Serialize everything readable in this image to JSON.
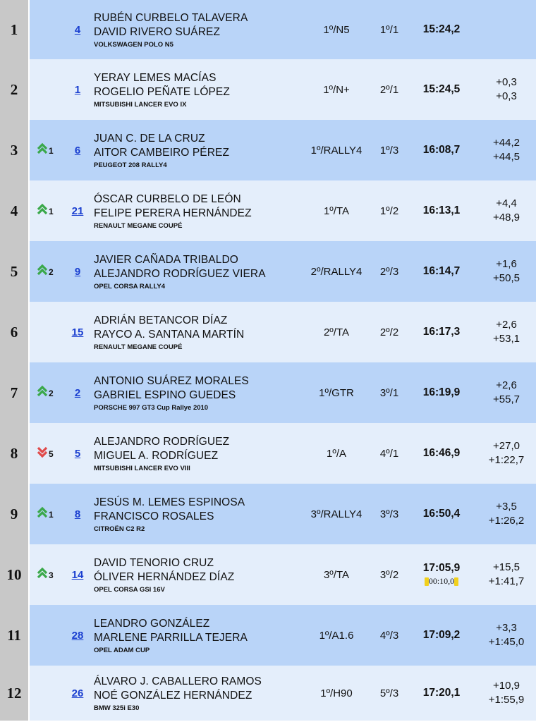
{
  "rows": [
    {
      "pos": "1",
      "change": null,
      "change_n": "",
      "num": "4",
      "d1": "RUBÉN CURBELO TALAVERA",
      "d2": "DAVID RIVERO SUÁREZ",
      "car": "VOLKSWAGEN POLO N5",
      "cls": "1º/N5",
      "ovr": "1º/1",
      "time": "15:24,2",
      "gap1": "",
      "gap2": "",
      "penalty": ""
    },
    {
      "pos": "2",
      "change": null,
      "change_n": "",
      "num": "1",
      "d1": "YERAY LEMES MACÍAS",
      "d2": "ROGELIO PEÑATE LÓPEZ",
      "car": "MITSUBISHI LANCER EVO IX",
      "cls": "1º/N+",
      "ovr": "2º/1",
      "time": "15:24,5",
      "gap1": "+0,3",
      "gap2": "+0,3",
      "penalty": ""
    },
    {
      "pos": "3",
      "change": "up",
      "change_n": "1",
      "num": "6",
      "d1": "JUAN C. DE LA CRUZ",
      "d2": "AITOR CAMBEIRO PÉREZ",
      "car": "PEUGEOT 208 RALLY4",
      "cls": "1º/RALLY4",
      "ovr": "1º/3",
      "time": "16:08,7",
      "gap1": "+44,2",
      "gap2": "+44,5",
      "penalty": ""
    },
    {
      "pos": "4",
      "change": "up",
      "change_n": "1",
      "num": "21",
      "d1": "ÓSCAR CURBELO DE LEÓN",
      "d2": "FELIPE PERERA HERNÁNDEZ",
      "car": "RENAULT MEGANE COUPÉ",
      "cls": "1º/TA",
      "ovr": "1º/2",
      "time": "16:13,1",
      "gap1": "+4,4",
      "gap2": "+48,9",
      "penalty": ""
    },
    {
      "pos": "5",
      "change": "up",
      "change_n": "2",
      "num": "9",
      "d1": "JAVIER CAÑADA TRIBALDO",
      "d2": "ALEJANDRO RODRÍGUEZ VIERA",
      "car": "OPEL CORSA RALLY4",
      "cls": "2º/RALLY4",
      "ovr": "2º/3",
      "time": "16:14,7",
      "gap1": "+1,6",
      "gap2": "+50,5",
      "penalty": ""
    },
    {
      "pos": "6",
      "change": null,
      "change_n": "",
      "num": "15",
      "d1": "ADRIÁN BETANCOR DÍAZ",
      "d2": "RAYCO A. SANTANA MARTÍN",
      "car": "RENAULT MEGANE COUPÉ",
      "cls": "2º/TA",
      "ovr": "2º/2",
      "time": "16:17,3",
      "gap1": "+2,6",
      "gap2": "+53,1",
      "penalty": ""
    },
    {
      "pos": "7",
      "change": "up",
      "change_n": "2",
      "num": "2",
      "d1": "ANTONIO SUÁREZ MORALES",
      "d2": "GABRIEL ESPINO GUEDES",
      "car": "PORSCHE 997 GT3 Cup Rallye 2010",
      "cls": "1º/GTR",
      "ovr": "3º/1",
      "time": "16:19,9",
      "gap1": "+2,6",
      "gap2": "+55,7",
      "penalty": ""
    },
    {
      "pos": "8",
      "change": "down",
      "change_n": "5",
      "num": "5",
      "d1": "ALEJANDRO RODRÍGUEZ",
      "d2": "MIGUEL A. RODRÍGUEZ",
      "car": "MITSUBISHI LANCER EVO VIII",
      "cls": "1º/A",
      "ovr": "4º/1",
      "time": "16:46,9",
      "gap1": "+27,0",
      "gap2": "+1:22,7",
      "penalty": ""
    },
    {
      "pos": "9",
      "change": "up",
      "change_n": "1",
      "num": "8",
      "d1": "JESÚS M. LEMES ESPINOSA",
      "d2": "FRANCISCO ROSALES",
      "car": "CITROËN C2 R2",
      "cls": "3º/RALLY4",
      "ovr": "3º/3",
      "time": "16:50,4",
      "gap1": "+3,5",
      "gap2": "+1:26,2",
      "penalty": ""
    },
    {
      "pos": "10",
      "change": "up",
      "change_n": "3",
      "num": "14",
      "d1": "DAVID TENORIO CRUZ",
      "d2": "ÓLIVER HERNÁNDEZ DÍAZ",
      "car": "OPEL CORSA GSI 16V",
      "cls": "3º/TA",
      "ovr": "3º/2",
      "time": "17:05,9",
      "gap1": "+15,5",
      "gap2": "+1:41,7",
      "penalty": "00:10,0"
    },
    {
      "pos": "11",
      "change": null,
      "change_n": "",
      "num": "28",
      "d1": "LEANDRO GONZÁLEZ",
      "d2": "MARLENE PARRILLA TEJERA",
      "car": "OPEL ADAM CUP",
      "cls": "1º/A1.6",
      "ovr": "4º/3",
      "time": "17:09,2",
      "gap1": "+3,3",
      "gap2": "+1:45,0",
      "penalty": ""
    },
    {
      "pos": "12",
      "change": null,
      "change_n": "",
      "num": "26",
      "d1": "ÁLVARO J. CABALLERO RAMOS",
      "d2": "NOÉ GONZÁLEZ HERNÁNDEZ",
      "car": "BMW 325i E30",
      "cls": "1º/H90",
      "ovr": "5º/3",
      "time": "17:20,1",
      "gap1": "+10,9",
      "gap2": "+1:55,9",
      "penalty": ""
    }
  ],
  "colors": {
    "row_dark": "#b9d4f8",
    "row_light": "#e4eefb",
    "position_cell": "#c8c8c8",
    "up_arrow": "#3aa84a",
    "down_arrow": "#e04a4a",
    "link": "#1a3fd0",
    "penalty_card": "#f1d01d"
  },
  "icons": {
    "up": "double-chevron-up-icon",
    "down": "double-chevron-down-icon",
    "penalty": "yellow-card-icon"
  }
}
